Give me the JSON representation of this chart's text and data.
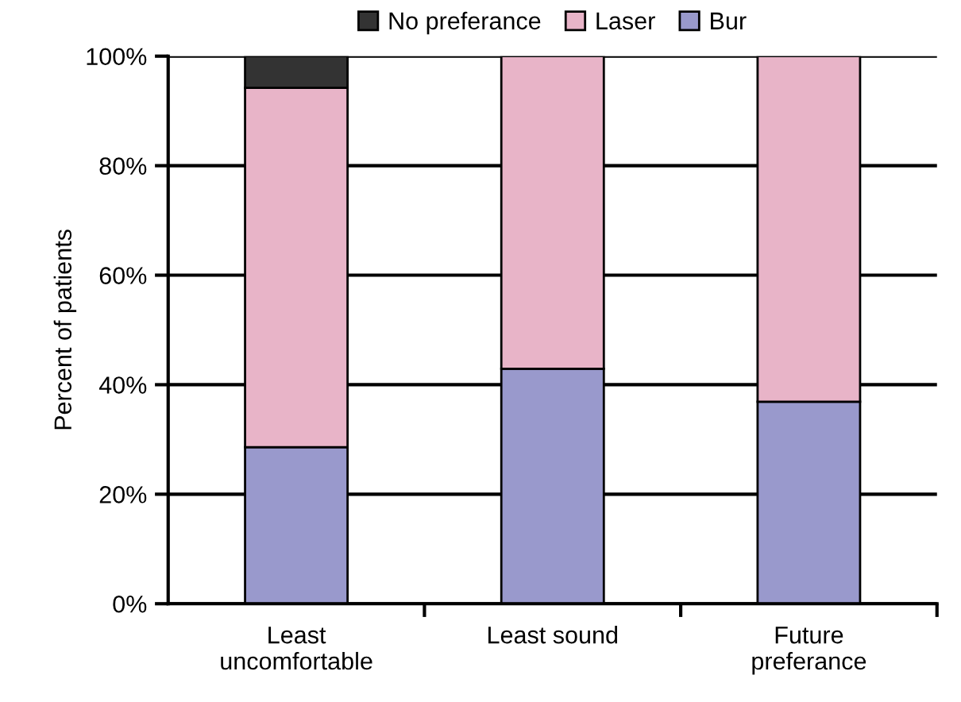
{
  "chart_data": {
    "type": "bar",
    "stacked": true,
    "ylabel": "Percent of patients",
    "categories": [
      "Least\nuncomfortable",
      "Least sound",
      "Future\npreferance"
    ],
    "series": [
      {
        "name": "Bur",
        "color": "#9999cc",
        "values": [
          28.6,
          42.9,
          36.9
        ]
      },
      {
        "name": "Laser",
        "color": "#e8b4c8",
        "values": [
          65.6,
          57.1,
          63.1
        ]
      },
      {
        "name": "No preferance",
        "color": "#333333",
        "values": [
          5.8,
          null,
          null
        ]
      }
    ],
    "ylim": [
      0,
      100
    ],
    "yticks": [
      {
        "value": 0,
        "label": "0%"
      },
      {
        "value": 20,
        "label": "20%"
      },
      {
        "value": 40,
        "label": "40%"
      },
      {
        "value": 60,
        "label": "60%"
      },
      {
        "value": 80,
        "label": "80%"
      },
      {
        "value": 100,
        "label": "100%"
      }
    ],
    "grid": "y",
    "legend": "top"
  }
}
